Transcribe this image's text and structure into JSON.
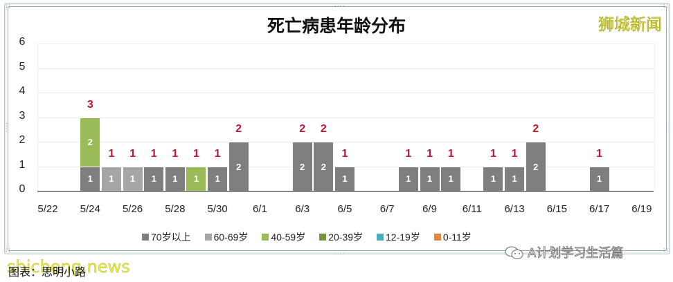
{
  "chart_data": {
    "type": "bar",
    "stacked": true,
    "title": "死亡病患年龄分布",
    "xlabel": "",
    "ylabel": "",
    "ylim": [
      0,
      6
    ],
    "yticks": [
      "0",
      "1",
      "2",
      "3",
      "4",
      "5",
      "6"
    ],
    "grid": true,
    "legend_position": "bottom",
    "xtick_labels": [
      "5/22",
      "5/24",
      "5/26",
      "5/28",
      "5/30",
      "6/1",
      "6/3",
      "6/5",
      "6/7",
      "6/9",
      "6/11",
      "6/13",
      "6/15",
      "6/17",
      "6/19"
    ],
    "categories": [
      "5/22",
      "5/23",
      "5/24",
      "5/25",
      "5/26",
      "5/27",
      "5/28",
      "5/29",
      "5/30",
      "5/31",
      "6/1",
      "6/2",
      "6/3",
      "6/4",
      "6/5",
      "6/6",
      "6/7",
      "6/8",
      "6/9",
      "6/10",
      "6/11",
      "6/12",
      "6/13",
      "6/14",
      "6/15",
      "6/16",
      "6/17",
      "6/18",
      "6/19"
    ],
    "series": [
      {
        "name": "70岁以上",
        "color": "#7f7f7f",
        "values": [
          0,
          0,
          1,
          0,
          0,
          1,
          1,
          0,
          1,
          2,
          0,
          0,
          2,
          2,
          1,
          0,
          0,
          1,
          1,
          1,
          0,
          1,
          1,
          2,
          0,
          0,
          1,
          0,
          0
        ]
      },
      {
        "name": "60-69岁",
        "color": "#a6a6a6",
        "values": [
          0,
          0,
          0,
          1,
          1,
          0,
          0,
          0,
          0,
          0,
          0,
          0,
          0,
          0,
          0,
          0,
          0,
          0,
          0,
          0,
          0,
          0,
          0,
          0,
          0,
          0,
          0,
          0,
          0
        ]
      },
      {
        "name": "40-59岁",
        "color": "#9bbb59",
        "values": [
          0,
          0,
          2,
          0,
          0,
          0,
          0,
          1,
          0,
          0,
          0,
          0,
          0,
          0,
          0,
          0,
          0,
          0,
          0,
          0,
          0,
          0,
          0,
          0,
          0,
          0,
          0,
          0,
          0
        ]
      },
      {
        "name": "20-39岁",
        "color": "#77933c",
        "values": [
          0,
          0,
          0,
          0,
          0,
          0,
          0,
          0,
          0,
          0,
          0,
          0,
          0,
          0,
          0,
          0,
          0,
          0,
          0,
          0,
          0,
          0,
          0,
          0,
          0,
          0,
          0,
          0,
          0
        ]
      },
      {
        "name": "12-19岁",
        "color": "#4bacc6",
        "values": [
          0,
          0,
          0,
          0,
          0,
          0,
          0,
          0,
          0,
          0,
          0,
          0,
          0,
          0,
          0,
          0,
          0,
          0,
          0,
          0,
          0,
          0,
          0,
          0,
          0,
          0,
          0,
          0,
          0
        ]
      },
      {
        "name": "0-11岁",
        "color": "#e2873f",
        "values": [
          0,
          0,
          0,
          0,
          0,
          0,
          0,
          0,
          0,
          0,
          0,
          0,
          0,
          0,
          0,
          0,
          0,
          0,
          0,
          0,
          0,
          0,
          0,
          0,
          0,
          0,
          0,
          0,
          0
        ]
      }
    ],
    "totals": [
      0,
      0,
      3,
      1,
      1,
      1,
      1,
      1,
      1,
      2,
      0,
      0,
      2,
      2,
      1,
      0,
      0,
      1,
      1,
      1,
      0,
      1,
      1,
      2,
      0,
      0,
      1,
      0,
      0
    ],
    "total_label_color": "#c0152f"
  },
  "watermark": "狮城新闻",
  "caption": "图表：思明小路",
  "caption_watermark": "shicheng.news",
  "account": "A计划学习生活篇",
  "legend": [
    {
      "label": "70岁以上",
      "color": "#7f7f7f"
    },
    {
      "label": "60-69岁",
      "color": "#a6a6a6"
    },
    {
      "label": "40-59岁",
      "color": "#9bbb59"
    },
    {
      "label": "20-39岁",
      "color": "#77933c"
    },
    {
      "label": "12-19岁",
      "color": "#4bacc6"
    },
    {
      "label": "0-11岁",
      "color": "#e2873f"
    }
  ]
}
